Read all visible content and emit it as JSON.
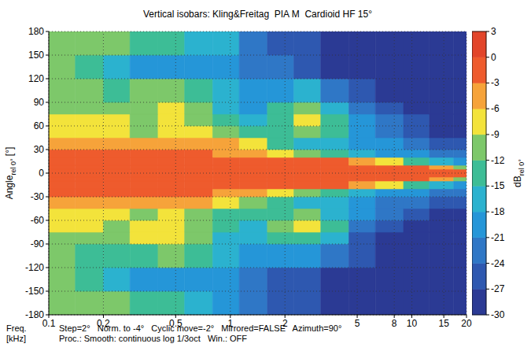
{
  "chart_data": {
    "type": "heatmap",
    "title": "Vertical isobars: Kling&Freitag  PIA M  Cardioid HF 15°",
    "xlabel": [
      "Freq.",
      "[kHz]"
    ],
    "ylabel": {
      "main": "Angle",
      "sub": "rel 0°",
      "unit": "[°]"
    },
    "notes": [
      "Step=2°   Norm. to -4°   Cyclic move=-2°   Mirrored=FALSE   Azimuth=90°",
      "Proc.: Smooth: continuous log 1/3oct   Win.: OFF"
    ],
    "log": "x",
    "grid": true,
    "xlim": [
      0.1,
      20
    ],
    "xticks": [
      0.1,
      0.2,
      0.5,
      1,
      2,
      5,
      8,
      10,
      15,
      20
    ],
    "ylim": [
      -180,
      180
    ],
    "yticks": [
      -180,
      -150,
      -120,
      -90,
      -60,
      -30,
      0,
      30,
      60,
      90,
      120,
      150,
      180
    ],
    "x_edges": [
      0.1,
      0.14,
      0.2,
      0.28,
      0.4,
      0.56,
      0.8,
      1.12,
      1.6,
      2.24,
      3.15,
      4.5,
      6.3,
      9,
      12.5,
      17,
      20
    ],
    "y_edges": [
      -180,
      -150,
      -120,
      -90,
      -75,
      -60,
      -45,
      -30,
      -20,
      -10,
      -5,
      5,
      10,
      20,
      30,
      45,
      60,
      75,
      90,
      120,
      150,
      180
    ],
    "values": [
      [
        -11,
        -10,
        -10,
        -13,
        -15,
        -17,
        -19,
        -22,
        -25,
        -27,
        -29,
        -30,
        -30,
        -30,
        -30,
        -30
      ],
      [
        -12,
        -14,
        -17,
        -19,
        -20,
        -21,
        -19,
        -22,
        -25,
        -26,
        -28,
        -30,
        -30,
        -30,
        -30,
        -30
      ],
      [
        -12,
        -13,
        -14,
        -13,
        -11,
        -14,
        -17,
        -20,
        -19,
        -19,
        -23,
        -27,
        -29,
        -30,
        -30,
        -30
      ],
      [
        -10,
        -11,
        -12,
        -9,
        -7,
        -12,
        -16,
        -18,
        -15,
        -13,
        -18,
        -25,
        -28,
        -29,
        -30,
        -30
      ],
      [
        -9,
        -9,
        -10,
        -9,
        -7,
        -11,
        -15,
        -17,
        -12,
        -9,
        -14,
        -22,
        -25,
        -28,
        -30,
        -30
      ],
      [
        -8,
        -9,
        -9,
        -10,
        -9,
        -10,
        -13,
        -15,
        -13,
        -12,
        -16,
        -20,
        -23,
        -26,
        -28,
        -29
      ],
      [
        -5,
        -5,
        -5,
        -5,
        -4,
        -5,
        -7,
        -10,
        -13,
        -16,
        -18,
        -20,
        -22,
        -24,
        -26,
        -27
      ],
      [
        -2,
        -2,
        -2,
        -2,
        -2,
        -3,
        -4,
        -6,
        -8,
        -12,
        -15,
        -17,
        -19,
        -21,
        -23,
        -24
      ],
      [
        -2,
        -2,
        -1,
        -1,
        -1,
        -1,
        -2,
        -2,
        -2,
        -2,
        -3,
        -5,
        -8,
        -13,
        -17,
        -20
      ],
      [
        -1,
        -1,
        -1,
        -1,
        -1,
        -1,
        -1,
        -1,
        -1,
        -1,
        -1,
        -2,
        -2,
        -3,
        -6,
        -10
      ],
      [
        -1,
        -1,
        -1,
        -1,
        -1,
        -1,
        -1,
        -1,
        -1,
        -1,
        -1,
        -1,
        -1,
        -1,
        -1,
        -2
      ],
      [
        -1,
        -1,
        -1,
        -1,
        -1,
        -1,
        -1,
        -1,
        -1,
        -1,
        -1,
        -2,
        -2,
        -3,
        -6,
        -10
      ],
      [
        -2,
        -2,
        -1,
        -1,
        -1,
        -1,
        -2,
        -2,
        -2,
        -2,
        -3,
        -5,
        -9,
        -14,
        -18,
        -20
      ],
      [
        -2,
        -2,
        -2,
        -2,
        -2,
        -3,
        -4,
        -5,
        -8,
        -12,
        -14,
        -17,
        -19,
        -21,
        -22,
        -24
      ],
      [
        -4,
        -5,
        -5,
        -4,
        -4,
        -5,
        -6,
        -9,
        -13,
        -16,
        -18,
        -20,
        -21,
        -24,
        -26,
        -27
      ],
      [
        -7,
        -8,
        -8,
        -10,
        -8,
        -9,
        -12,
        -15,
        -14,
        -11,
        -15,
        -20,
        -22,
        -25,
        -28,
        -29
      ],
      [
        -8,
        -9,
        -9,
        -11,
        -7,
        -10,
        -15,
        -18,
        -13,
        -8,
        -14,
        -21,
        -24,
        -27,
        -30,
        -30
      ],
      [
        -10,
        -10,
        -12,
        -10,
        -8,
        -12,
        -16,
        -19,
        -15,
        -12,
        -17,
        -24,
        -27,
        -29,
        -30,
        -30
      ],
      [
        -12,
        -12,
        -14,
        -12,
        -11,
        -14,
        -16,
        -20,
        -19,
        -18,
        -22,
        -27,
        -29,
        -30,
        -30,
        -30
      ],
      [
        -12,
        -14,
        -17,
        -19,
        -20,
        -21,
        -19,
        -22,
        -24,
        -26,
        -28,
        -30,
        -30,
        -30,
        -30,
        -30
      ],
      [
        -11,
        -10,
        -10,
        -13,
        -15,
        -17,
        -18,
        -22,
        -25,
        -27,
        -29,
        -30,
        -30,
        -30,
        -30,
        -30
      ]
    ],
    "colorbar": {
      "label": {
        "main": "dB",
        "sub": "rel 0°"
      },
      "range": [
        -30,
        3
      ],
      "ticks": [
        3,
        0,
        -3,
        -6,
        -9,
        -12,
        -15,
        -18,
        -21,
        -24,
        -27,
        -30
      ],
      "colors": [
        "#2b3a94",
        "#2e58b0",
        "#2f77c6",
        "#2596d8",
        "#2bb2cf",
        "#3dbd96",
        "#7dc86a",
        "#f3e33b",
        "#f6a33a",
        "#ee5b2d",
        "#e2452a"
      ]
    }
  }
}
